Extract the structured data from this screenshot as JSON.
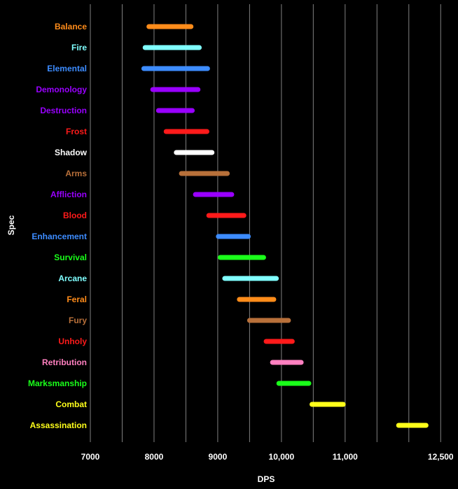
{
  "chart_data": {
    "type": "range-bar",
    "xlabel": "DPS",
    "ylabel": "Spec",
    "xlim": [
      7000,
      12750
    ],
    "x_ticks": [
      {
        "value": 7000,
        "label": "7000"
      },
      {
        "value": 8000,
        "label": "8000"
      },
      {
        "value": 9000,
        "label": "9000"
      },
      {
        "value": 10000,
        "label": "10,000"
      },
      {
        "value": 11000,
        "label": "11,000"
      },
      {
        "value": 12500,
        "label": "12,500"
      }
    ],
    "gridlines": [
      7000,
      7500,
      8000,
      8500,
      9000,
      9500,
      10000,
      10500,
      11000,
      11500,
      12000,
      12500
    ],
    "grid": true,
    "series": [
      {
        "label": "Balance",
        "color": "#ff8c1a",
        "low": 7920,
        "high": 8580
      },
      {
        "label": "Fire",
        "color": "#80ffff",
        "low": 7860,
        "high": 8710
      },
      {
        "label": "Elemental",
        "color": "#3d8cff",
        "low": 7840,
        "high": 8840
      },
      {
        "label": "Demonology",
        "color": "#9900ff",
        "low": 7980,
        "high": 8690
      },
      {
        "label": "Destruction",
        "color": "#9900ff",
        "low": 8070,
        "high": 8600
      },
      {
        "label": "Frost",
        "color": "#ff1a1a",
        "low": 8190,
        "high": 8830
      },
      {
        "label": "Shadow",
        "color": "#ffffff",
        "low": 8350,
        "high": 8910
      },
      {
        "label": "Arms",
        "color": "#b8703a",
        "low": 8430,
        "high": 9150
      },
      {
        "label": "Affliction",
        "color": "#9900ff",
        "low": 8650,
        "high": 9220
      },
      {
        "label": "Blood",
        "color": "#ff1a1a",
        "low": 8860,
        "high": 9410
      },
      {
        "label": "Enhancement",
        "color": "#3d8cff",
        "low": 9010,
        "high": 9480
      },
      {
        "label": "Survival",
        "color": "#1aff1a",
        "low": 9040,
        "high": 9720
      },
      {
        "label": "Arcane",
        "color": "#80ffff",
        "low": 9110,
        "high": 9920
      },
      {
        "label": "Feral",
        "color": "#ff8c1a",
        "low": 9340,
        "high": 9880
      },
      {
        "label": "Fury",
        "color": "#b8703a",
        "low": 9500,
        "high": 10110
      },
      {
        "label": "Unholy",
        "color": "#ff1a1a",
        "low": 9760,
        "high": 10170
      },
      {
        "label": "Retribution",
        "color": "#ff80c0",
        "low": 9860,
        "high": 10310
      },
      {
        "label": "Marksmanship",
        "color": "#1aff1a",
        "low": 9960,
        "high": 10430
      },
      {
        "label": "Combat",
        "color": "#ffff1a",
        "low": 10480,
        "high": 10970
      },
      {
        "label": "Assassination",
        "color": "#ffff1a",
        "low": 11840,
        "high": 12270
      }
    ]
  }
}
